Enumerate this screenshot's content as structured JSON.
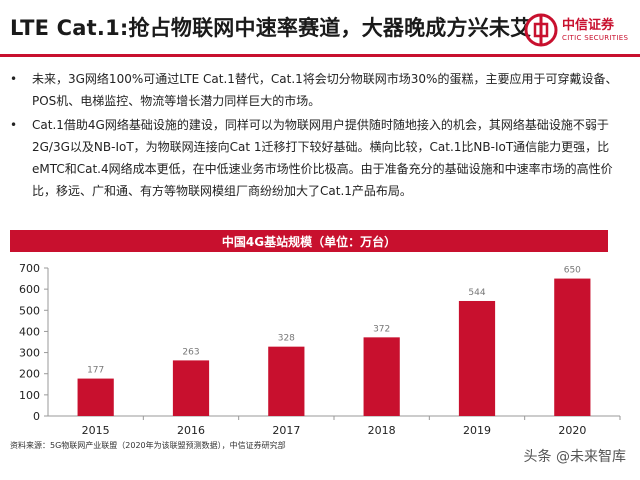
{
  "header": {
    "title": "LTE Cat.1:抢占物联网中速率赛道，大器晚成方兴未艾",
    "logo_cn": "中信证券",
    "logo_en": "CITIC SECURITIES"
  },
  "bullets": [
    {
      "marker": "•",
      "text": "未来，3G网络100%可通过LTE Cat.1替代，Cat.1将会切分物联网市场30%的蛋糕，主要应用于可穿戴设备、POS机、电梯监控、物流等增长潜力同样巨大的市场。"
    },
    {
      "marker": "•",
      "text": "Cat.1借助4G网络基础设施的建设，同样可以为物联网用户提供随时随地接入的机会，其网络基础设施不弱于2G/3G以及NB-IoT，为物联网连接向Cat 1迁移打下较好基础。横向比较，Cat.1比NB-IoT通信能力更强，比eMTC和Cat.4网络成本更低，在中低速业务市场性价比极高。由于准备充分的基础设施和中速率市场的高性价比，移远、广和通、有方等物联网模组厂商纷纷加大了Cat.1产品布局。"
    }
  ],
  "chart_data": {
    "type": "bar",
    "title": "中国4G基站规模（单位：万台）",
    "categories": [
      "2015",
      "2016",
      "2017",
      "2018",
      "2019",
      "2020"
    ],
    "values": [
      177,
      263,
      328,
      372,
      544,
      650
    ],
    "ylim": [
      0,
      700
    ],
    "yticks": [
      0,
      100,
      200,
      300,
      400,
      500,
      600,
      700
    ],
    "grid": false,
    "color": "#c8102e"
  },
  "footer": {
    "source": "资料来源：5G物联网产业联盟（2020年为该联盟预测数据），中信证券研究部",
    "watermark": "头条 @未来智库"
  },
  "colors": {
    "brand_red": "#c8102e"
  }
}
